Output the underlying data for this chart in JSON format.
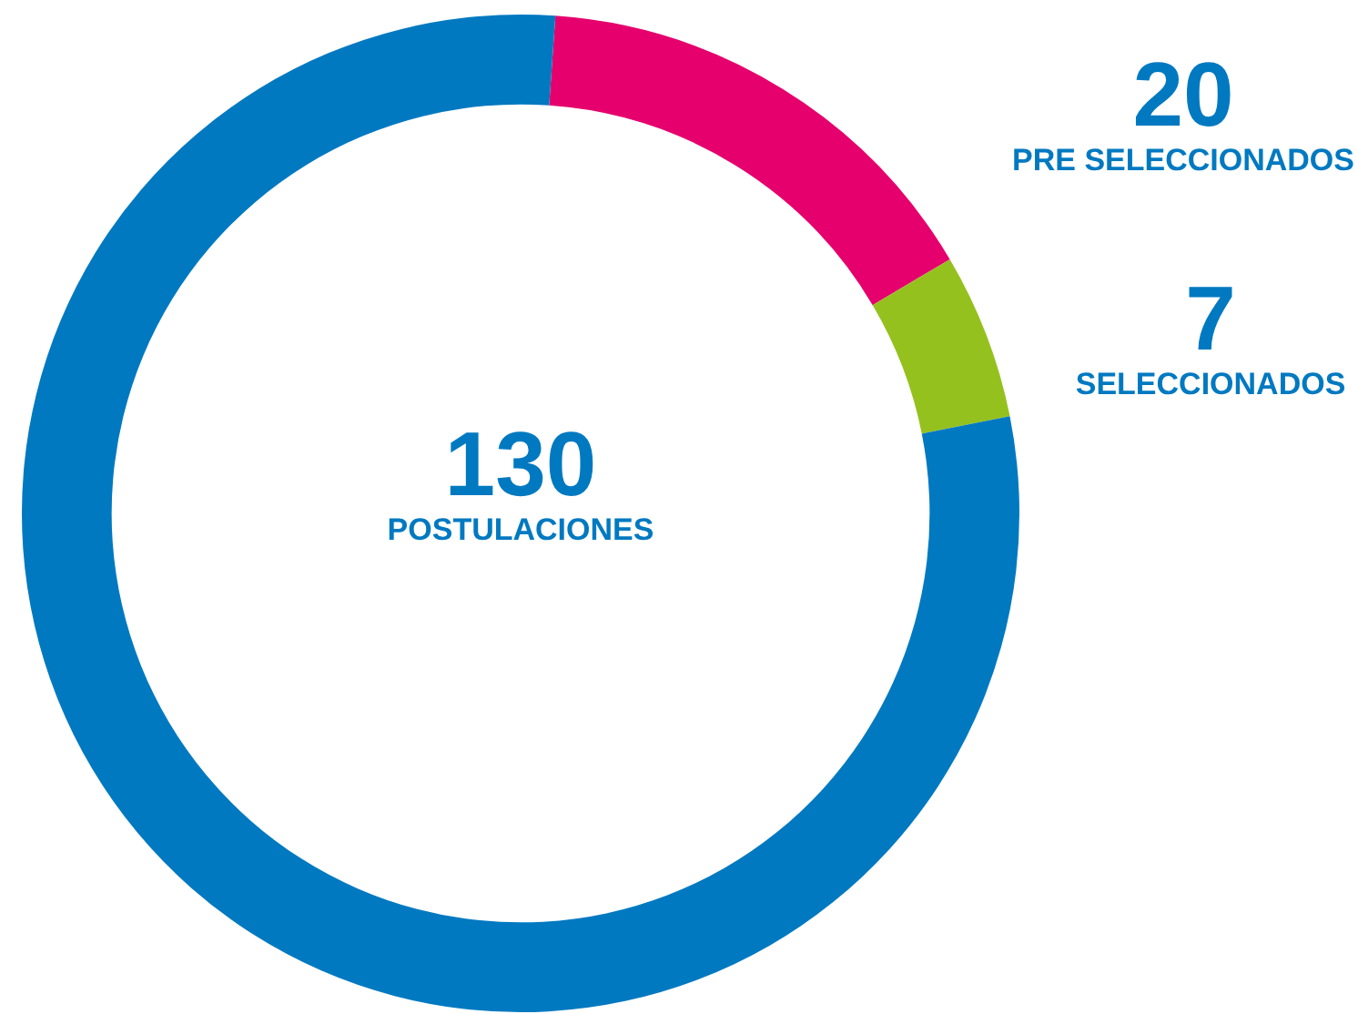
{
  "chart_data": {
    "type": "donut",
    "categories": [
      "PRE SELECCIONADOS",
      "SELECCIONADOS",
      null
    ],
    "values": [
      20,
      7,
      103
    ],
    "colors": [
      "#e5006d",
      "#95c11f",
      "#0079c1"
    ],
    "value_labels": [
      "20",
      "7",
      null
    ],
    "annotations": [
      "130",
      "POSTULACIONES"
    ],
    "legend": false
  }
}
